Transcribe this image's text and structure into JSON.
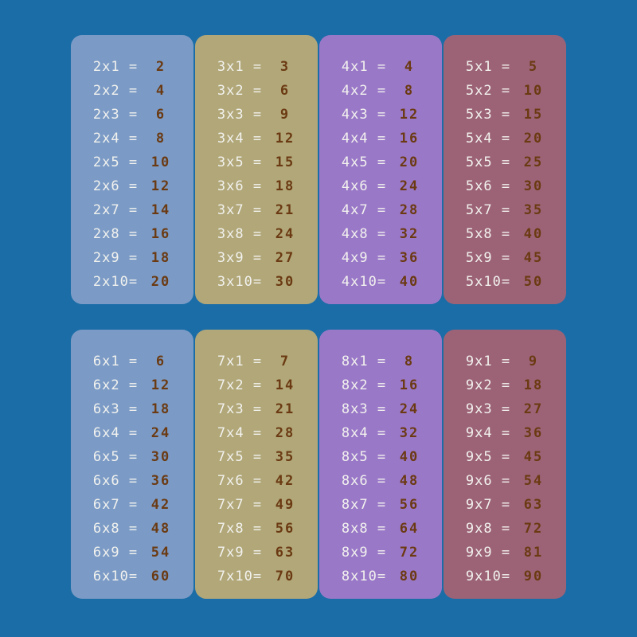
{
  "cards": [
    {
      "color": "#7b9bc6",
      "rows": [
        {
          "expr": "2x1 =",
          "result": 2
        },
        {
          "expr": "2x2 =",
          "result": 4
        },
        {
          "expr": "2x3 =",
          "result": 6
        },
        {
          "expr": "2x4 =",
          "result": 8
        },
        {
          "expr": "2x5 =",
          "result": 10
        },
        {
          "expr": "2x6 =",
          "result": 12
        },
        {
          "expr": "2x7 =",
          "result": 14
        },
        {
          "expr": "2x8 =",
          "result": 16
        },
        {
          "expr": "2x9 =",
          "result": 18
        },
        {
          "expr": "2x10=",
          "result": 20
        }
      ]
    },
    {
      "color": "#b1a779",
      "rows": [
        {
          "expr": "3x1 =",
          "result": 3
        },
        {
          "expr": "3x2 =",
          "result": 6
        },
        {
          "expr": "3x3 =",
          "result": 9
        },
        {
          "expr": "3x4 =",
          "result": 12
        },
        {
          "expr": "3x5 =",
          "result": 15
        },
        {
          "expr": "3x6 =",
          "result": 18
        },
        {
          "expr": "3x7 =",
          "result": 21
        },
        {
          "expr": "3x8 =",
          "result": 24
        },
        {
          "expr": "3x9 =",
          "result": 27
        },
        {
          "expr": "3x10=",
          "result": 30
        }
      ]
    },
    {
      "color": "#9a78c8",
      "rows": [
        {
          "expr": "4x1 =",
          "result": 4
        },
        {
          "expr": "4x2 =",
          "result": 8
        },
        {
          "expr": "4x3 =",
          "result": 12
        },
        {
          "expr": "4x4 =",
          "result": 16
        },
        {
          "expr": "4x5 =",
          "result": 20
        },
        {
          "expr": "4x6 =",
          "result": 24
        },
        {
          "expr": "4x7 =",
          "result": 28
        },
        {
          "expr": "4x8 =",
          "result": 32
        },
        {
          "expr": "4x9 =",
          "result": 36
        },
        {
          "expr": "4x10=",
          "result": 40
        }
      ]
    },
    {
      "color": "#9c6377",
      "rows": [
        {
          "expr": "5x1 =",
          "result": 5
        },
        {
          "expr": "5x2 =",
          "result": 10
        },
        {
          "expr": "5x3 =",
          "result": 15
        },
        {
          "expr": "5x4 =",
          "result": 20
        },
        {
          "expr": "5x5 =",
          "result": 25
        },
        {
          "expr": "5x6 =",
          "result": 30
        },
        {
          "expr": "5x7 =",
          "result": 35
        },
        {
          "expr": "5x8 =",
          "result": 40
        },
        {
          "expr": "5x9 =",
          "result": 45
        },
        {
          "expr": "5x10=",
          "result": 50
        }
      ]
    },
    {
      "color": "#7b9bc6",
      "rows": [
        {
          "expr": "6x1 =",
          "result": 6
        },
        {
          "expr": "6x2 =",
          "result": 12
        },
        {
          "expr": "6x3 =",
          "result": 18
        },
        {
          "expr": "6x4 =",
          "result": 24
        },
        {
          "expr": "6x5 =",
          "result": 30
        },
        {
          "expr": "6x6 =",
          "result": 36
        },
        {
          "expr": "6x7 =",
          "result": 42
        },
        {
          "expr": "6x8 =",
          "result": 48
        },
        {
          "expr": "6x9 =",
          "result": 54
        },
        {
          "expr": "6x10=",
          "result": 60
        }
      ]
    },
    {
      "color": "#b1a779",
      "rows": [
        {
          "expr": "7x1 =",
          "result": 7
        },
        {
          "expr": "7x2 =",
          "result": 14
        },
        {
          "expr": "7x3 =",
          "result": 21
        },
        {
          "expr": "7x4 =",
          "result": 28
        },
        {
          "expr": "7x5 =",
          "result": 35
        },
        {
          "expr": "7x6 =",
          "result": 42
        },
        {
          "expr": "7x7 =",
          "result": 49
        },
        {
          "expr": "7x8 =",
          "result": 56
        },
        {
          "expr": "7x9 =",
          "result": 63
        },
        {
          "expr": "7x10=",
          "result": 70
        }
      ]
    },
    {
      "color": "#9a78c8",
      "rows": [
        {
          "expr": "8x1 =",
          "result": 8
        },
        {
          "expr": "8x2 =",
          "result": 16
        },
        {
          "expr": "8x3 =",
          "result": 24
        },
        {
          "expr": "8x4 =",
          "result": 32
        },
        {
          "expr": "8x5 =",
          "result": 40
        },
        {
          "expr": "8x6 =",
          "result": 48
        },
        {
          "expr": "8x7 =",
          "result": 56
        },
        {
          "expr": "8x8 =",
          "result": 64
        },
        {
          "expr": "8x9 =",
          "result": 72
        },
        {
          "expr": "8x10=",
          "result": 80
        }
      ]
    },
    {
      "color": "#9c6377",
      "rows": [
        {
          "expr": "9x1 =",
          "result": 9
        },
        {
          "expr": "9x2 =",
          "result": 18
        },
        {
          "expr": "9x3 =",
          "result": 27
        },
        {
          "expr": "9x4 =",
          "result": 36
        },
        {
          "expr": "9x5 =",
          "result": 45
        },
        {
          "expr": "9x6 =",
          "result": 54
        },
        {
          "expr": "9x7 =",
          "result": 63
        },
        {
          "expr": "9x8 =",
          "result": 72
        },
        {
          "expr": "9x9 =",
          "result": 81
        },
        {
          "expr": "9x10=",
          "result": 90
        }
      ]
    }
  ]
}
